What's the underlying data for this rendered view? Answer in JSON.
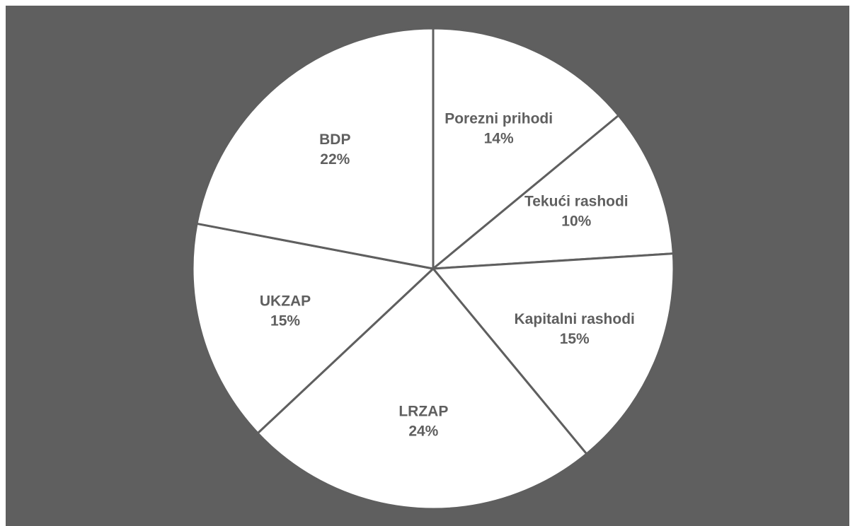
{
  "chart_data": {
    "type": "pie",
    "categories": [
      "Porezni prihodi",
      "Tekući rashodi",
      "Kapitalni rashodi",
      "LRZAP",
      "UKZAP",
      "BDP"
    ],
    "values": [
      14,
      10,
      15,
      24,
      15,
      22
    ],
    "value_labels": [
      "14%",
      "10%",
      "15%",
      "24%",
      "15%",
      "22%"
    ],
    "color": "#ffffff"
  }
}
